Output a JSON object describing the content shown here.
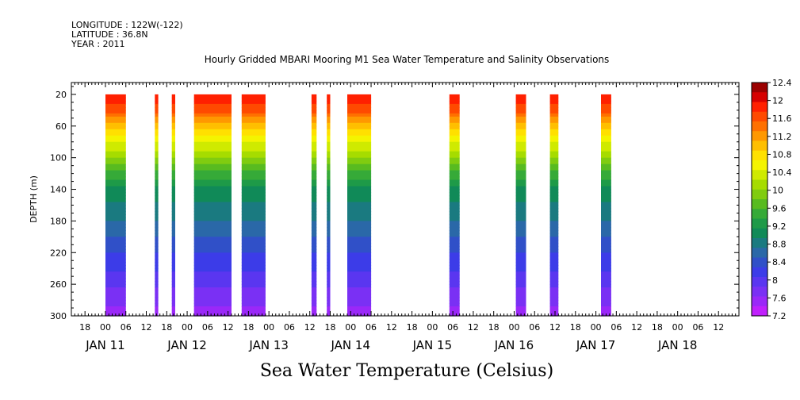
{
  "header": {
    "longitude": "LONGITUDE : 122W(-122)",
    "latitude": "LATITUDE : 36.8N",
    "year": "YEAR : 2011"
  },
  "chart_data": {
    "type": "heatmap",
    "title": "Hourly Gridded MBARI Mooring M1 Sea Water Temperature and Salinity Observations",
    "xlabel": "Sea Water Temperature (Celsius)",
    "ylabel": "DEPTH (m)",
    "ylim": [
      300,
      5
    ],
    "xlim_hours": [
      -10,
      186
    ],
    "y_ticks": [
      20,
      60,
      100,
      140,
      180,
      220,
      260,
      300
    ],
    "x_hour_ticks": [
      "18",
      "00",
      "06",
      "12",
      "18",
      "00",
      "06",
      "12",
      "18",
      "00",
      "06",
      "12",
      "18",
      "00",
      "06",
      "12",
      "18",
      "00",
      "06",
      "12",
      "18",
      "00",
      "06",
      "12",
      "18",
      "00",
      "06",
      "12",
      "18",
      "00",
      "06",
      "12"
    ],
    "x_day_labels": [
      "JAN 11",
      "JAN 12",
      "JAN 13",
      "JAN 14",
      "JAN 15",
      "JAN 16",
      "JAN 17",
      "JAN 18"
    ],
    "day_start_hours": [
      0,
      24,
      48,
      72,
      96,
      120,
      144,
      168
    ],
    "colorbar": {
      "levels": [
        12.4,
        12,
        11.6,
        11.2,
        10.8,
        10.4,
        10,
        9.6,
        9.2,
        8.8,
        8.4,
        8,
        7.6,
        7.2
      ],
      "colors": [
        "#9b0000",
        "#d60000",
        "#ff2000",
        "#ff4a00",
        "#ff7000",
        "#ff9800",
        "#ffbf00",
        "#ffe000",
        "#f4f400",
        "#cfea00",
        "#a6dc00",
        "#80cc10",
        "#58bb20",
        "#36aa38",
        "#1e9a48",
        "#108a58",
        "#1a7a80",
        "#2a68a8",
        "#3050c8",
        "#3c3ce8",
        "#5a36f0",
        "#7a30f4",
        "#9a28f8",
        "#c020fc"
      ]
    },
    "temperature_profile": {
      "depth_m": [
        20,
        40,
        60,
        80,
        100,
        120,
        140,
        160,
        180,
        200,
        220,
        240,
        260,
        280,
        300
      ],
      "temp_c": [
        12.0,
        11.6,
        11.0,
        10.5,
        10.0,
        9.5,
        9.1,
        8.9,
        8.7,
        8.5,
        8.3,
        8.1,
        7.9,
        7.7,
        7.5
      ]
    },
    "observation_blocks": [
      {
        "start_hour": 0,
        "end_hour": 6
      },
      {
        "start_hour": 14.5,
        "end_hour": 15.5
      },
      {
        "start_hour": 19.5,
        "end_hour": 20.5
      },
      {
        "start_hour": 26,
        "end_hour": 37
      },
      {
        "start_hour": 40,
        "end_hour": 47
      },
      {
        "start_hour": 60.5,
        "end_hour": 62
      },
      {
        "start_hour": 65,
        "end_hour": 66
      },
      {
        "start_hour": 71,
        "end_hour": 78
      },
      {
        "start_hour": 101,
        "end_hour": 104
      },
      {
        "start_hour": 120.5,
        "end_hour": 123.5
      },
      {
        "start_hour": 130.5,
        "end_hour": 133
      },
      {
        "start_hour": 145.5,
        "end_hour": 148.5
      }
    ]
  }
}
